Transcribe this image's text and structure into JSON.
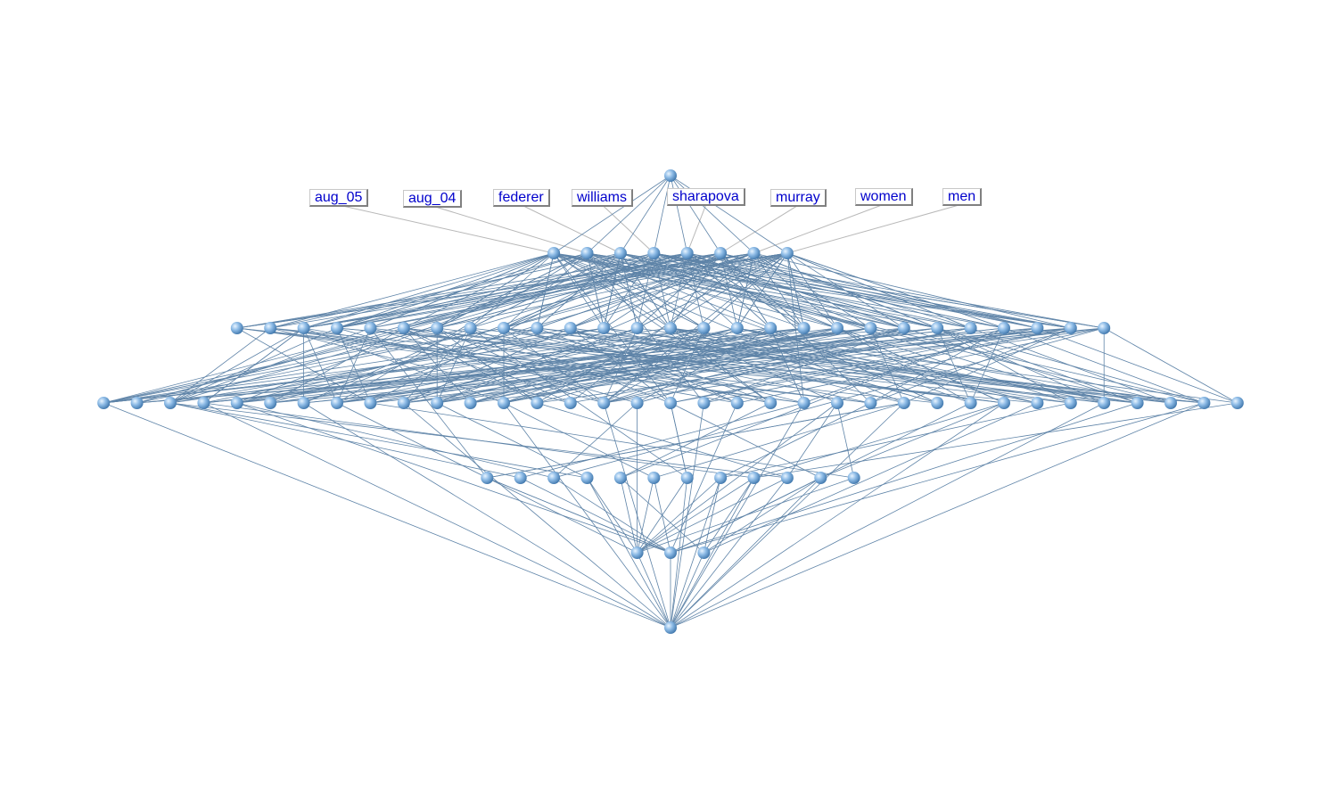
{
  "colors": {
    "edge": "#5f84a8",
    "label_connector": "#b8b8b8",
    "node_fill": "#8dbbe6",
    "node_highlight": "#e8f4ff",
    "node_shadow": "#3f76ab",
    "label_text": "#0000cc"
  },
  "diagram": {
    "type": "concept-lattice",
    "levels": [
      1,
      8,
      27,
      35,
      12,
      3,
      1
    ],
    "labels": [
      {
        "text": "aug_05",
        "attribute_index": 0
      },
      {
        "text": "aug_04",
        "attribute_index": 1
      },
      {
        "text": "federer",
        "attribute_index": 2
      },
      {
        "text": "williams",
        "attribute_index": 3
      },
      {
        "text": "sharapova",
        "attribute_index": 4
      },
      {
        "text": "murray",
        "attribute_index": 5
      },
      {
        "text": "women",
        "attribute_index": 6
      },
      {
        "text": "men",
        "attribute_index": 7
      }
    ]
  }
}
